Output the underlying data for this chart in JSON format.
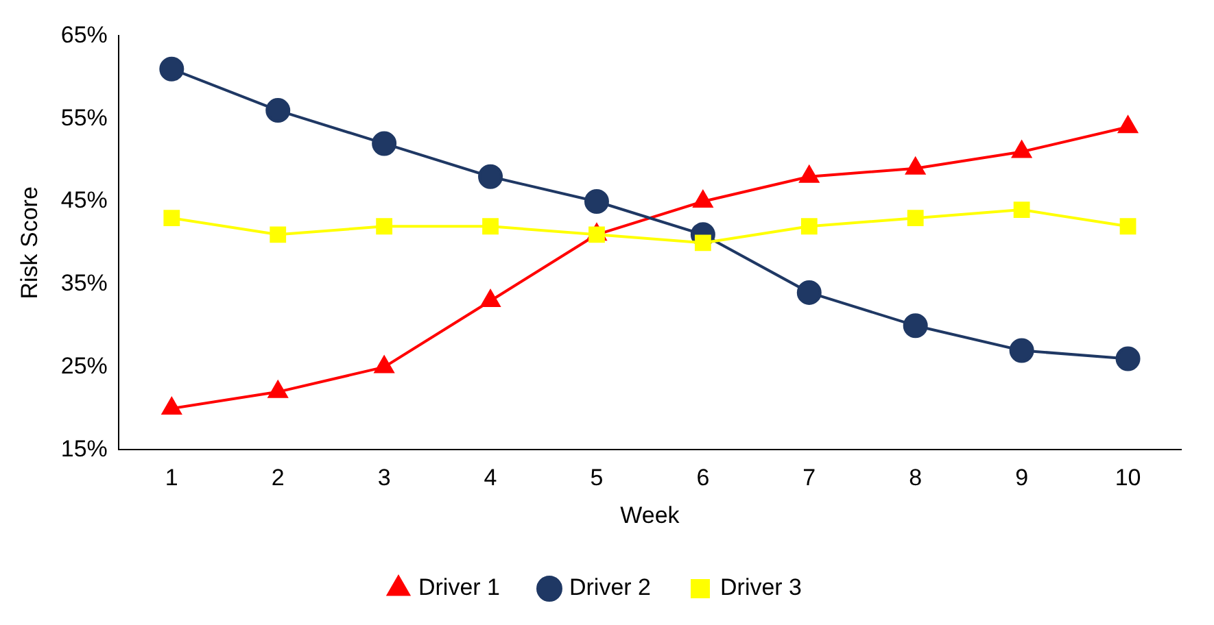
{
  "chart_data": {
    "type": "line",
    "xlabel": "Week",
    "ylabel": "Risk Score",
    "categories": [
      "1",
      "2",
      "3",
      "4",
      "5",
      "6",
      "7",
      "8",
      "9",
      "10"
    ],
    "series": [
      {
        "name": "Driver 1",
        "color": "#ff0000",
        "marker": "triangle",
        "values": [
          20,
          22,
          25,
          33,
          41,
          45,
          48,
          49,
          51,
          54
        ]
      },
      {
        "name": "Driver 2",
        "color": "#1f3864",
        "marker": "circle",
        "values": [
          61,
          56,
          52,
          48,
          45,
          41,
          34,
          30,
          27,
          26
        ]
      },
      {
        "name": "Driver 3",
        "color": "#ffff00",
        "marker": "square",
        "values": [
          43,
          41,
          42,
          42,
          41,
          40,
          42,
          43,
          44,
          42
        ]
      }
    ],
    "ylim": [
      15,
      65
    ],
    "yticks": [
      {
        "value": 15,
        "label": "15%"
      },
      {
        "value": 25,
        "label": "25%"
      },
      {
        "value": 35,
        "label": "35%"
      },
      {
        "value": 45,
        "label": "45%"
      },
      {
        "value": 55,
        "label": "55%"
      },
      {
        "value": 65,
        "label": "65%"
      }
    ],
    "grid": false,
    "legend": "bottom",
    "line_style": "solid"
  }
}
